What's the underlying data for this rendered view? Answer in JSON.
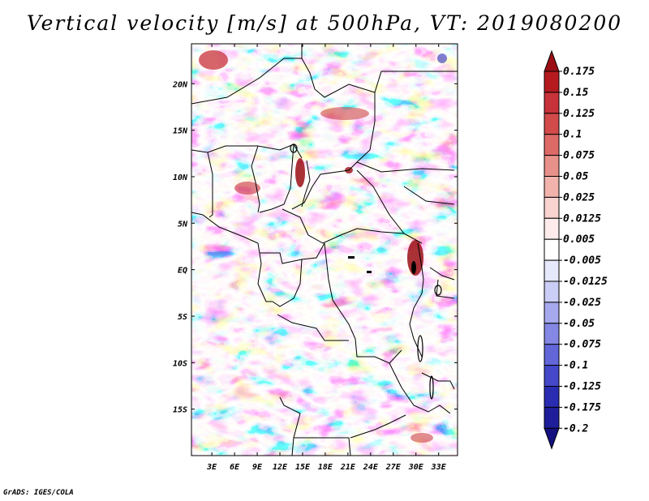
{
  "title": "Vertical velocity [m/s] at 500hPa, VT: 2019080200",
  "footer": "GrADS: IGES/COLA",
  "map": {
    "lon_labels": [
      "3E",
      "6E",
      "9E",
      "12E",
      "15E",
      "18E",
      "21E",
      "24E",
      "27E",
      "30E",
      "33E"
    ],
    "lon_values": [
      3,
      6,
      9,
      12,
      15,
      18,
      21,
      24,
      27,
      30,
      33
    ],
    "lat_labels": [
      "20N",
      "15N",
      "10N",
      "5N",
      "EQ",
      "5S",
      "10S",
      "15S"
    ],
    "lat_values": [
      20,
      15,
      10,
      5,
      0,
      -5,
      -10,
      -15
    ],
    "lon_range": [
      0.3,
      35.5
    ],
    "lat_range": [
      -20,
      24.3
    ]
  },
  "colorbar": {
    "labels": [
      "0.175",
      "0.15",
      "0.125",
      "0.1",
      "0.075",
      "0.05",
      "0.025",
      "0.0125",
      "0.005",
      "-0.005",
      "-0.0125",
      "-0.025",
      "-0.05",
      "-0.075",
      "-0.1",
      "-0.125",
      "-0.175",
      "-0.2"
    ],
    "colors": [
      "#9b0f14",
      "#b51a1f",
      "#c8323a",
      "#d24a4a",
      "#de6a67",
      "#e8908a",
      "#f2b3ad",
      "#f9d3cf",
      "#fdeceb",
      "#ffffff",
      "#e6e8fb",
      "#cacdf5",
      "#a6a9ee",
      "#8488e4",
      "#6266d9",
      "#4448c9",
      "#2a2cb2",
      "#1e1e9a",
      "#14107f"
    ]
  }
}
